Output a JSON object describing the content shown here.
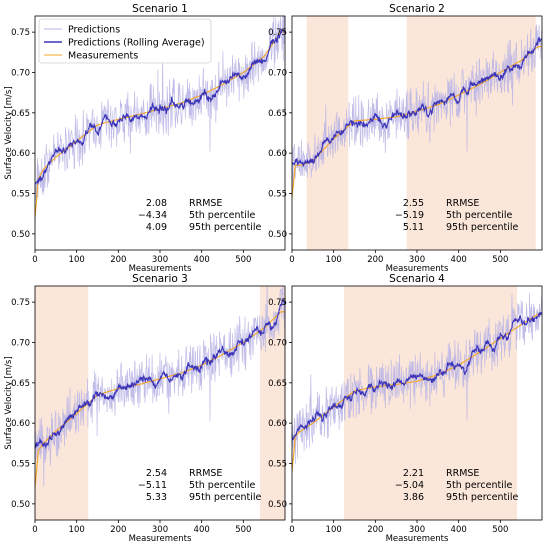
{
  "chart_data": [
    {
      "type": "line",
      "title": "Scenario 1",
      "xlabel": "Measurements",
      "ylabel": "Surface Velocity [m/s]",
      "xlim": [
        0,
        600
      ],
      "ylim": [
        0.48,
        0.77
      ],
      "xticks": [
        0,
        100,
        200,
        300,
        400,
        500
      ],
      "yticks": [
        0.5,
        0.55,
        0.6,
        0.65,
        0.7,
        0.75
      ],
      "shaded_regions": [],
      "series": [
        {
          "name": "Predictions",
          "color": "#b9b5e6"
        },
        {
          "name": "Predictions (Rolling Average)",
          "color": "#3b33b8"
        },
        {
          "name": "Measurements",
          "color": "#f5a623"
        }
      ],
      "trend": {
        "x": [
          0,
          20,
          50,
          100,
          150,
          200,
          250,
          300,
          350,
          400,
          450,
          500,
          550,
          590
        ],
        "y": [
          0.56,
          0.58,
          0.595,
          0.615,
          0.635,
          0.642,
          0.648,
          0.655,
          0.662,
          0.672,
          0.685,
          0.7,
          0.72,
          0.75
        ]
      },
      "stats": {
        "values": [
          "2.08",
          "−4.34",
          "4.09"
        ],
        "labels": [
          "RRMSE",
          "5th percentile",
          "95th percentile"
        ]
      },
      "legend": "top-left"
    },
    {
      "type": "line",
      "title": "Scenario 2",
      "xlabel": "Measurements",
      "ylabel": "",
      "xlim": [
        0,
        600
      ],
      "ylim": [
        0.48,
        0.77
      ],
      "xticks": [
        0,
        100,
        200,
        300,
        400,
        500
      ],
      "yticks": [
        0.5,
        0.55,
        0.6,
        0.65,
        0.7,
        0.75
      ],
      "shaded_regions": [
        [
          35,
          135
        ],
        [
          275,
          585
        ]
      ],
      "series": [
        {
          "name": "Predictions",
          "color": "#b9b5e6"
        },
        {
          "name": "Predictions (Rolling Average)",
          "color": "#3b33b8"
        },
        {
          "name": "Measurements",
          "color": "#f5a623"
        }
      ],
      "trend": {
        "x": [
          0,
          20,
          50,
          100,
          150,
          200,
          250,
          300,
          350,
          400,
          450,
          500,
          550,
          590
        ],
        "y": [
          0.585,
          0.585,
          0.59,
          0.618,
          0.64,
          0.642,
          0.645,
          0.652,
          0.66,
          0.672,
          0.685,
          0.7,
          0.715,
          0.732
        ]
      },
      "stats": {
        "values": [
          "2.55",
          "−5.19",
          "5.11"
        ],
        "labels": [
          "RRMSE",
          "5th percentile",
          "95th percentile"
        ]
      },
      "legend": "none"
    },
    {
      "type": "line",
      "title": "Scenario 3",
      "xlabel": "Measurements",
      "ylabel": "Surface Velocity [m/s]",
      "xlim": [
        0,
        600
      ],
      "ylim": [
        0.48,
        0.77
      ],
      "xticks": [
        0,
        100,
        200,
        300,
        400,
        500
      ],
      "yticks": [
        0.5,
        0.55,
        0.6,
        0.65,
        0.7,
        0.75
      ],
      "shaded_regions": [
        [
          0,
          128
        ],
        [
          540,
          600
        ]
      ],
      "series": [
        {
          "name": "Predictions",
          "color": "#b9b5e6"
        },
        {
          "name": "Predictions (Rolling Average)",
          "color": "#3b33b8"
        },
        {
          "name": "Measurements",
          "color": "#f5a623"
        }
      ],
      "trend": {
        "x": [
          0,
          20,
          50,
          100,
          150,
          200,
          250,
          300,
          350,
          400,
          450,
          500,
          550,
          590
        ],
        "y": [
          0.56,
          0.575,
          0.59,
          0.612,
          0.635,
          0.643,
          0.648,
          0.655,
          0.662,
          0.672,
          0.685,
          0.7,
          0.718,
          0.738
        ]
      },
      "stats": {
        "values": [
          "2.54",
          "−5.11",
          "5.33"
        ],
        "labels": [
          "RRMSE",
          "5th percentile",
          "95th percentile"
        ]
      },
      "legend": "none"
    },
    {
      "type": "line",
      "title": "Scenario 4",
      "xlabel": "Measurements",
      "ylabel": "",
      "xlim": [
        0,
        600
      ],
      "ylim": [
        0.48,
        0.77
      ],
      "xticks": [
        0,
        100,
        200,
        300,
        400,
        500
      ],
      "yticks": [
        0.5,
        0.55,
        0.6,
        0.65,
        0.7,
        0.75
      ],
      "shaded_regions": [
        [
          125,
          540
        ]
      ],
      "series": [
        {
          "name": "Predictions",
          "color": "#b9b5e6"
        },
        {
          "name": "Predictions (Rolling Average)",
          "color": "#3b33b8"
        },
        {
          "name": "Measurements",
          "color": "#f5a623"
        }
      ],
      "trend": {
        "x": [
          0,
          20,
          50,
          100,
          150,
          200,
          250,
          300,
          350,
          400,
          450,
          500,
          550,
          590
        ],
        "y": [
          0.58,
          0.59,
          0.6,
          0.62,
          0.64,
          0.645,
          0.648,
          0.652,
          0.66,
          0.672,
          0.688,
          0.705,
          0.722,
          0.735
        ]
      },
      "stats": {
        "values": [
          "2.21",
          "−5.04",
          "3.86"
        ],
        "labels": [
          "RRMSE",
          "5th percentile",
          "95th percentile"
        ]
      },
      "legend": "none"
    }
  ],
  "colors": {
    "shade": "#fbe6da",
    "axis": "#000000"
  }
}
